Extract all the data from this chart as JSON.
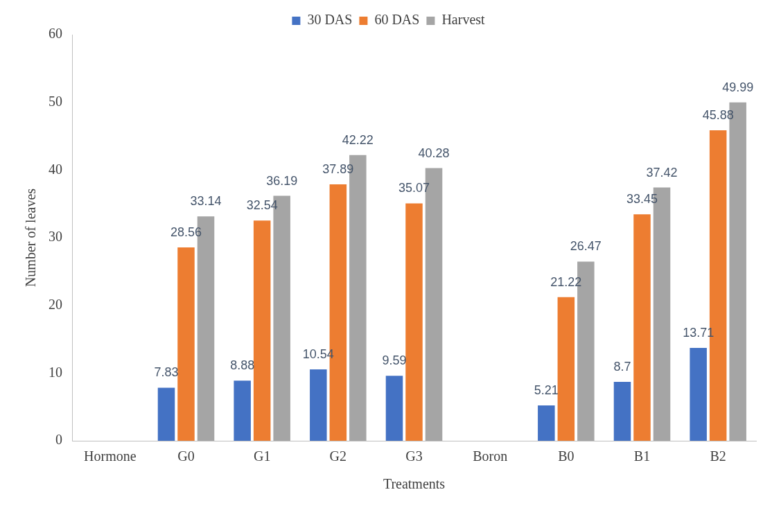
{
  "chart_data": {
    "type": "bar",
    "xlabel": "Treatments",
    "ylabel": "Number of leaves",
    "categories": [
      "Hormone",
      "G0",
      "G1",
      "G2",
      "G3",
      "Boron",
      "B0",
      "B1",
      "B2"
    ],
    "series": [
      {
        "name": "30 DAS",
        "color": "#4472c4",
        "values": [
          null,
          7.83,
          8.88,
          10.54,
          9.59,
          null,
          5.21,
          8.7,
          13.71
        ]
      },
      {
        "name": "60 DAS",
        "color": "#ed7d31",
        "values": [
          null,
          28.56,
          32.54,
          37.89,
          35.07,
          null,
          21.22,
          33.45,
          45.88
        ]
      },
      {
        "name": "Harvest",
        "color": "#a5a5a5",
        "values": [
          null,
          33.14,
          36.19,
          42.22,
          40.28,
          null,
          26.47,
          37.42,
          49.99
        ]
      }
    ],
    "ylim": [
      0,
      60
    ],
    "yticks": [
      0,
      10,
      20,
      30,
      40,
      50,
      60
    ],
    "grid": false,
    "legend": "top",
    "data_labels": true
  }
}
